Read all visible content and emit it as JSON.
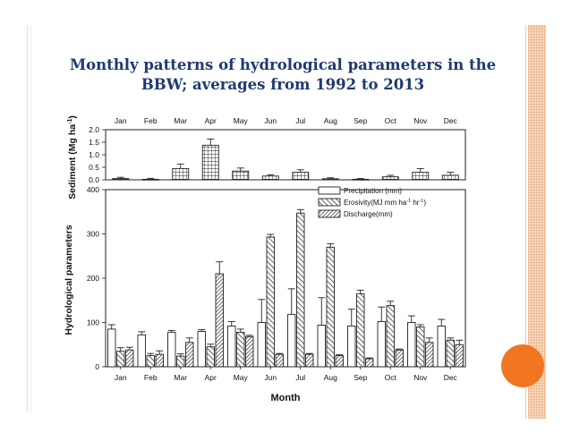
{
  "slide": {
    "title_line1": "Monthly patterns of hydrological parameters in the",
    "title_line2": "BBW; averages from 1992 to 2013"
  },
  "colors": {
    "title": "#1f3a70",
    "accent": "#f2761f",
    "band": "#f7d9bf"
  },
  "chart_data": {
    "type": "bar",
    "xlabel": "Month",
    "categories": [
      "Jan",
      "Feb",
      "Mar",
      "Apr",
      "May",
      "Jun",
      "Jul",
      "Aug",
      "Sep",
      "Oct",
      "Nov",
      "Dec"
    ],
    "top_panel": {
      "ylabel_main": "Sediment (Mg ha",
      "ylabel_sup": "-1",
      "ylabel_end": ")",
      "ylim": [
        0,
        2.0
      ],
      "yticks": [
        "0.0",
        "0.5",
        "1.0",
        "1.5",
        "2.0"
      ],
      "series": [
        {
          "name": "Sediment",
          "values": [
            0.05,
            0.02,
            0.45,
            1.38,
            0.35,
            0.15,
            0.3,
            0.04,
            0.02,
            0.12,
            0.3,
            0.18
          ],
          "errors": [
            0.05,
            0.04,
            0.18,
            0.25,
            0.12,
            0.05,
            0.1,
            0.04,
            0.03,
            0.06,
            0.15,
            0.12
          ]
        }
      ]
    },
    "bottom_panel": {
      "ylabel": "Hydrological parameters",
      "ylim": [
        0,
        400
      ],
      "yticks": [
        "0",
        "100",
        "200",
        "300",
        "400"
      ],
      "series": [
        {
          "name": "Precipitation (mm)",
          "values": [
            85,
            72,
            78,
            80,
            92,
            100,
            118,
            94,
            92,
            102,
            100,
            92
          ],
          "errors": [
            10,
            7,
            4,
            4,
            10,
            52,
            58,
            62,
            38,
            33,
            15,
            15
          ]
        },
        {
          "name": "Erosivity(MJ mm ha-1 hr-1)",
          "values": [
            35,
            25,
            24,
            45,
            78,
            293,
            347,
            270,
            165,
            138,
            90,
            60
          ],
          "errors": [
            8,
            5,
            5,
            6,
            7,
            6,
            8,
            8,
            8,
            10,
            5,
            5
          ]
        },
        {
          "name": "Discharge(mm)",
          "values": [
            38,
            28,
            55,
            210,
            68,
            28,
            28,
            25,
            18,
            38,
            55,
            50
          ],
          "errors": [
            6,
            8,
            10,
            27,
            3,
            2,
            2,
            2,
            2,
            2,
            10,
            10
          ]
        }
      ],
      "legend": {
        "position": "top-right",
        "items": [
          {
            "pre": "Precipitation (mm)",
            "sup": "",
            "mid": "",
            "sup2": "",
            "post": ""
          },
          {
            "pre": "Erosivity(MJ mm ha",
            "sup": "-1",
            "mid": " hr",
            "sup2": "-1",
            "post": ")"
          },
          {
            "pre": "Discharge(mm)",
            "sup": "",
            "mid": "",
            "sup2": "",
            "post": ""
          }
        ]
      }
    }
  }
}
